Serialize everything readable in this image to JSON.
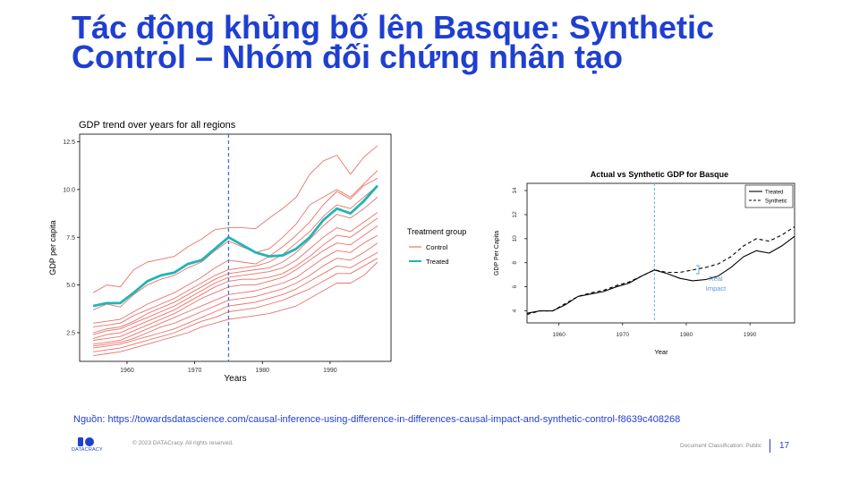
{
  "slide": {
    "title_line1": "Tác động khủng bố lên Basque: Synthetic",
    "title_line2": "Control – Nhóm đối chứng nhân tạo",
    "source": "Nguồn: https://towardsdatascience.com/causal-inference-using-difference-in-differences-causal-impact-and-synthetic-control-f8639c408268",
    "logo_text": "DATACRACY",
    "copyright": "© 2023 DATACracy. All rights reserved.",
    "classification": "Document Classification: Public",
    "page_number": "17",
    "accent_color": "#1f3fd1"
  },
  "chart_data": [
    {
      "type": "line",
      "title": "GDP trend over years for all regions",
      "xlabel": "Years",
      "ylabel": "GDP per capita",
      "xlim": [
        1953,
        1999
      ],
      "ylim": [
        1.0,
        12.9
      ],
      "x_ticks": [
        1960,
        1970,
        1980,
        1990
      ],
      "y_ticks": [
        2.5,
        5.0,
        7.5,
        10.0,
        12.5
      ],
      "y_tick_labels": [
        "2.5",
        "5.0",
        "7.5",
        "10.0",
        "12.5"
      ],
      "vline": 1975,
      "grid": false,
      "legend": {
        "title": "Treatment group",
        "position": "right",
        "entries": [
          "Control",
          "Treated"
        ]
      },
      "colors": {
        "control": "#e8736b",
        "treated": "#1fb5b5",
        "vline": "#4a6fd4"
      },
      "x": [
        1955,
        1957,
        1959,
        1961,
        1963,
        1965,
        1967,
        1969,
        1971,
        1973,
        1975,
        1977,
        1979,
        1981,
        1983,
        1985,
        1987,
        1989,
        1991,
        1993,
        1995,
        1997
      ],
      "series": [
        {
          "name": "Treated",
          "values": [
            3.9,
            4.05,
            4.05,
            4.6,
            5.2,
            5.5,
            5.65,
            6.1,
            6.3,
            6.9,
            7.5,
            7.1,
            6.7,
            6.5,
            6.55,
            6.9,
            7.5,
            8.4,
            9.0,
            8.75,
            9.4,
            10.2
          ]
        },
        {
          "name": "Control",
          "values": [
            4.6,
            5.0,
            4.9,
            5.8,
            6.2,
            6.35,
            6.5,
            7.0,
            7.4,
            7.9,
            8.0,
            8.0,
            7.95,
            8.5,
            9.0,
            9.6,
            10.8,
            11.5,
            11.8,
            10.8,
            11.7,
            12.3
          ]
        },
        {
          "name": "Control",
          "values": [
            3.7,
            4.0,
            3.85,
            4.5,
            5.0,
            5.3,
            5.5,
            5.9,
            6.2,
            6.8,
            7.3,
            7.0,
            6.7,
            6.9,
            7.5,
            8.2,
            9.2,
            9.6,
            10.0,
            9.6,
            10.3,
            11.0
          ]
        },
        {
          "name": "Control",
          "values": [
            3.0,
            3.1,
            3.2,
            3.6,
            4.0,
            4.3,
            4.6,
            5.0,
            5.4,
            5.9,
            6.3,
            6.2,
            6.1,
            6.5,
            7.0,
            7.6,
            8.3,
            9.2,
            9.9,
            9.5,
            10.2,
            10.6
          ]
        },
        {
          "name": "Control",
          "values": [
            2.8,
            2.9,
            3.0,
            3.4,
            3.7,
            4.0,
            4.3,
            4.7,
            5.1,
            5.5,
            5.8,
            5.9,
            6.0,
            6.2,
            6.6,
            7.2,
            7.8,
            8.6,
            9.2,
            9.0,
            9.6,
            10.2
          ]
        },
        {
          "name": "Control",
          "values": [
            2.5,
            2.7,
            2.8,
            3.1,
            3.5,
            3.8,
            4.1,
            4.5,
            4.9,
            5.3,
            5.6,
            5.7,
            5.8,
            5.9,
            6.2,
            6.7,
            7.4,
            8.1,
            8.7,
            8.5,
            9.0,
            9.6
          ]
        },
        {
          "name": "Control",
          "values": [
            2.4,
            2.6,
            2.7,
            3.0,
            3.3,
            3.6,
            3.9,
            4.3,
            4.7,
            5.1,
            5.4,
            5.5,
            5.6,
            5.7,
            5.9,
            6.3,
            6.9,
            7.5,
            8.0,
            7.8,
            8.3,
            8.8
          ]
        },
        {
          "name": "Control",
          "values": [
            2.2,
            2.4,
            2.5,
            2.8,
            3.1,
            3.4,
            3.7,
            4.1,
            4.5,
            4.9,
            5.2,
            5.3,
            5.3,
            5.4,
            5.6,
            6.0,
            6.5,
            7.1,
            7.6,
            7.5,
            8.0,
            8.5
          ]
        },
        {
          "name": "Control",
          "values": [
            2.1,
            2.2,
            2.3,
            2.6,
            2.9,
            3.2,
            3.5,
            3.9,
            4.3,
            4.6,
            4.9,
            5.0,
            5.0,
            5.2,
            5.4,
            5.8,
            6.3,
            6.8,
            7.2,
            7.1,
            7.6,
            8.1
          ]
        },
        {
          "name": "Control",
          "values": [
            1.9,
            2.0,
            2.1,
            2.4,
            2.7,
            3.0,
            3.3,
            3.6,
            3.9,
            4.2,
            4.5,
            4.6,
            4.7,
            4.9,
            5.1,
            5.4,
            5.9,
            6.4,
            6.8,
            6.7,
            7.2,
            7.6
          ]
        },
        {
          "name": "Control",
          "values": [
            1.8,
            1.9,
            2.0,
            2.2,
            2.5,
            2.8,
            3.0,
            3.3,
            3.6,
            3.9,
            4.2,
            4.3,
            4.4,
            4.6,
            4.8,
            5.1,
            5.5,
            6.0,
            6.4,
            6.3,
            6.7,
            7.2
          ]
        },
        {
          "name": "Control",
          "values": [
            1.7,
            1.8,
            1.9,
            2.1,
            2.3,
            2.5,
            2.7,
            3.0,
            3.3,
            3.6,
            3.9,
            4.0,
            4.1,
            4.3,
            4.5,
            4.8,
            5.2,
            5.6,
            6.0,
            5.9,
            6.3,
            6.7
          ]
        },
        {
          "name": "Control",
          "values": [
            1.5,
            1.6,
            1.7,
            1.9,
            2.1,
            2.3,
            2.5,
            2.8,
            3.1,
            3.3,
            3.6,
            3.7,
            3.8,
            4.0,
            4.2,
            4.5,
            4.8,
            5.2,
            5.6,
            5.6,
            6.0,
            6.4
          ]
        },
        {
          "name": "Control",
          "values": [
            1.3,
            1.4,
            1.5,
            1.7,
            1.9,
            2.1,
            2.3,
            2.5,
            2.8,
            3.0,
            3.2,
            3.3,
            3.4,
            3.5,
            3.7,
            3.9,
            4.3,
            4.7,
            5.1,
            5.1,
            5.5,
            6.2
          ]
        }
      ]
    },
    {
      "type": "line",
      "title": "Actual vs Synthetic GDP for Basque",
      "xlabel": "Year",
      "ylabel": "GDP Per Capita",
      "xlim": [
        1955,
        1997
      ],
      "ylim": [
        3,
        14.6
      ],
      "x_ticks": [
        1960,
        1970,
        1980,
        1990
      ],
      "y_ticks": [
        4,
        6,
        8,
        10,
        12,
        14
      ],
      "vline": 1975,
      "grid": false,
      "legend": {
        "position": "top-right",
        "entries": [
          "Treated",
          "Synthetic"
        ]
      },
      "annotations": [
        {
          "text_line1": "Real",
          "text_line2": "Impact",
          "color": "#5b9bd5"
        }
      ],
      "x": [
        1955,
        1957,
        1959,
        1961,
        1963,
        1965,
        1967,
        1969,
        1971,
        1973,
        1975,
        1977,
        1979,
        1981,
        1983,
        1985,
        1987,
        1989,
        1991,
        1993,
        1995,
        1997
      ],
      "series": [
        {
          "name": "Treated",
          "style": "solid",
          "values": [
            3.8,
            4.0,
            4.0,
            4.5,
            5.2,
            5.4,
            5.6,
            6.0,
            6.3,
            6.9,
            7.4,
            7.1,
            6.7,
            6.5,
            6.6,
            6.9,
            7.6,
            8.5,
            9.0,
            8.8,
            9.4,
            10.2
          ]
        },
        {
          "name": "Synthetic",
          "style": "dashed",
          "values": [
            3.7,
            4.0,
            4.0,
            4.6,
            5.2,
            5.5,
            5.7,
            6.1,
            6.4,
            6.9,
            7.4,
            7.2,
            7.2,
            7.4,
            7.6,
            7.9,
            8.5,
            9.4,
            10.0,
            9.8,
            10.3,
            11.0
          ]
        }
      ]
    }
  ]
}
